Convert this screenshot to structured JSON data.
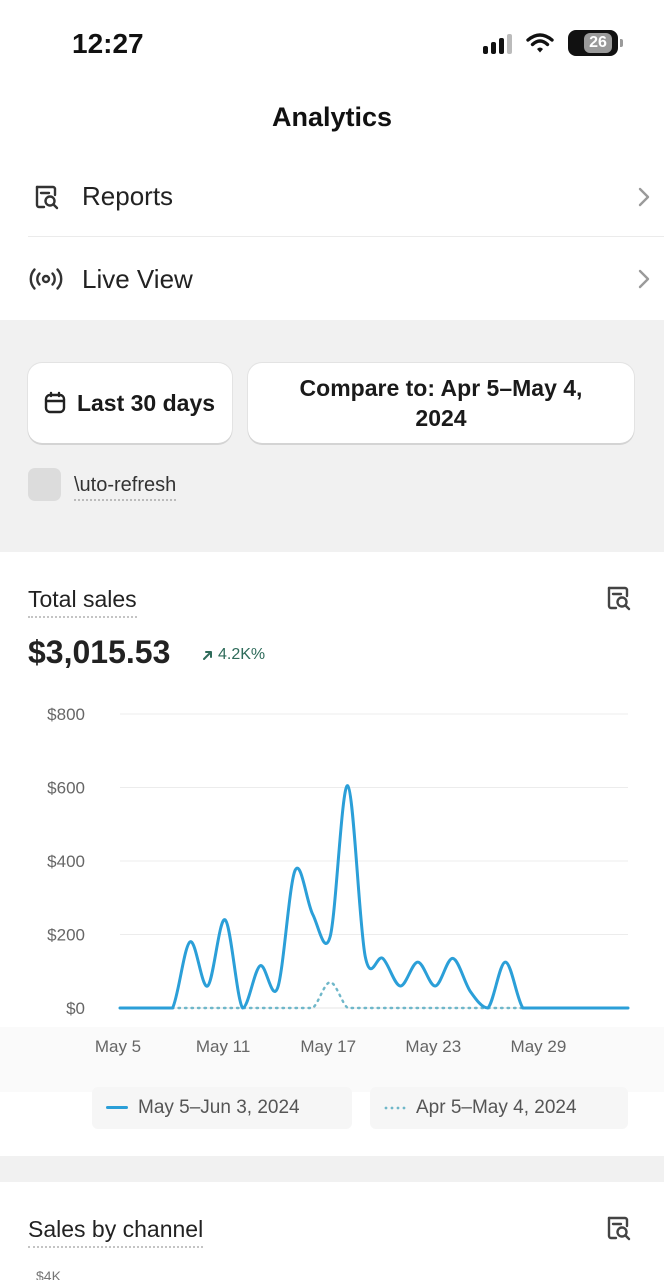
{
  "status_bar": {
    "time": "12:27",
    "battery_level": "26",
    "icons": [
      "signal-icon",
      "wifi-icon",
      "battery-icon"
    ]
  },
  "header": {
    "title": "Analytics"
  },
  "nav": {
    "items": [
      {
        "label": "Reports",
        "icon": "report-search-icon"
      },
      {
        "label": "Live View",
        "icon": "broadcast-icon"
      }
    ]
  },
  "filters": {
    "date_range_label": "Last 30 days",
    "compare_label": "Compare to: Apr 5–May 4, 2024",
    "auto_refresh_label": "\\uto-refresh",
    "auto_refresh_checked": false
  },
  "total_sales": {
    "title": "Total sales",
    "value": "$3,015.53",
    "change": "4.2K%",
    "accent_color": "#2b9fd8",
    "compare_color": "#6fb7c9"
  },
  "chart_data": {
    "type": "line",
    "title": "Total sales",
    "xlabel": "",
    "ylabel": "",
    "ylim": [
      0,
      800
    ],
    "y_ticks": [
      "$800",
      "$600",
      "$400",
      "$200",
      "$0"
    ],
    "x_ticks": [
      "May 5",
      "May 11",
      "May 17",
      "May 23",
      "May 29"
    ],
    "grid": true,
    "legend_position": "bottom",
    "x": [
      "May 5",
      "May 6",
      "May 7",
      "May 8",
      "May 9",
      "May 10",
      "May 11",
      "May 12",
      "May 13",
      "May 14",
      "May 15",
      "May 16",
      "May 17",
      "May 18",
      "May 19",
      "May 20",
      "May 21",
      "May 22",
      "May 23",
      "May 24",
      "May 25",
      "May 26",
      "May 27",
      "May 28",
      "May 29",
      "May 30",
      "May 31",
      "Jun 1",
      "Jun 2",
      "Jun 3"
    ],
    "series": [
      {
        "name": "May 5–Jun 3, 2024",
        "style": "solid",
        "values": [
          0,
          0,
          0,
          0,
          180,
          60,
          240,
          0,
          115,
          55,
          375,
          255,
          195,
          605,
          140,
          135,
          60,
          125,
          60,
          135,
          45,
          0,
          125,
          0,
          0,
          0,
          0,
          0,
          0,
          0
        ]
      },
      {
        "name": "Apr 5–May 4, 2024",
        "style": "dotted",
        "values": [
          0,
          0,
          0,
          0,
          0,
          0,
          0,
          0,
          0,
          0,
          0,
          0,
          70,
          0,
          0,
          0,
          0,
          0,
          0,
          0,
          0,
          0,
          0,
          0,
          0,
          0,
          0,
          0,
          0,
          0
        ]
      }
    ]
  },
  "sales_by_channel": {
    "title": "Sales by channel",
    "first_tick": "$4K"
  }
}
